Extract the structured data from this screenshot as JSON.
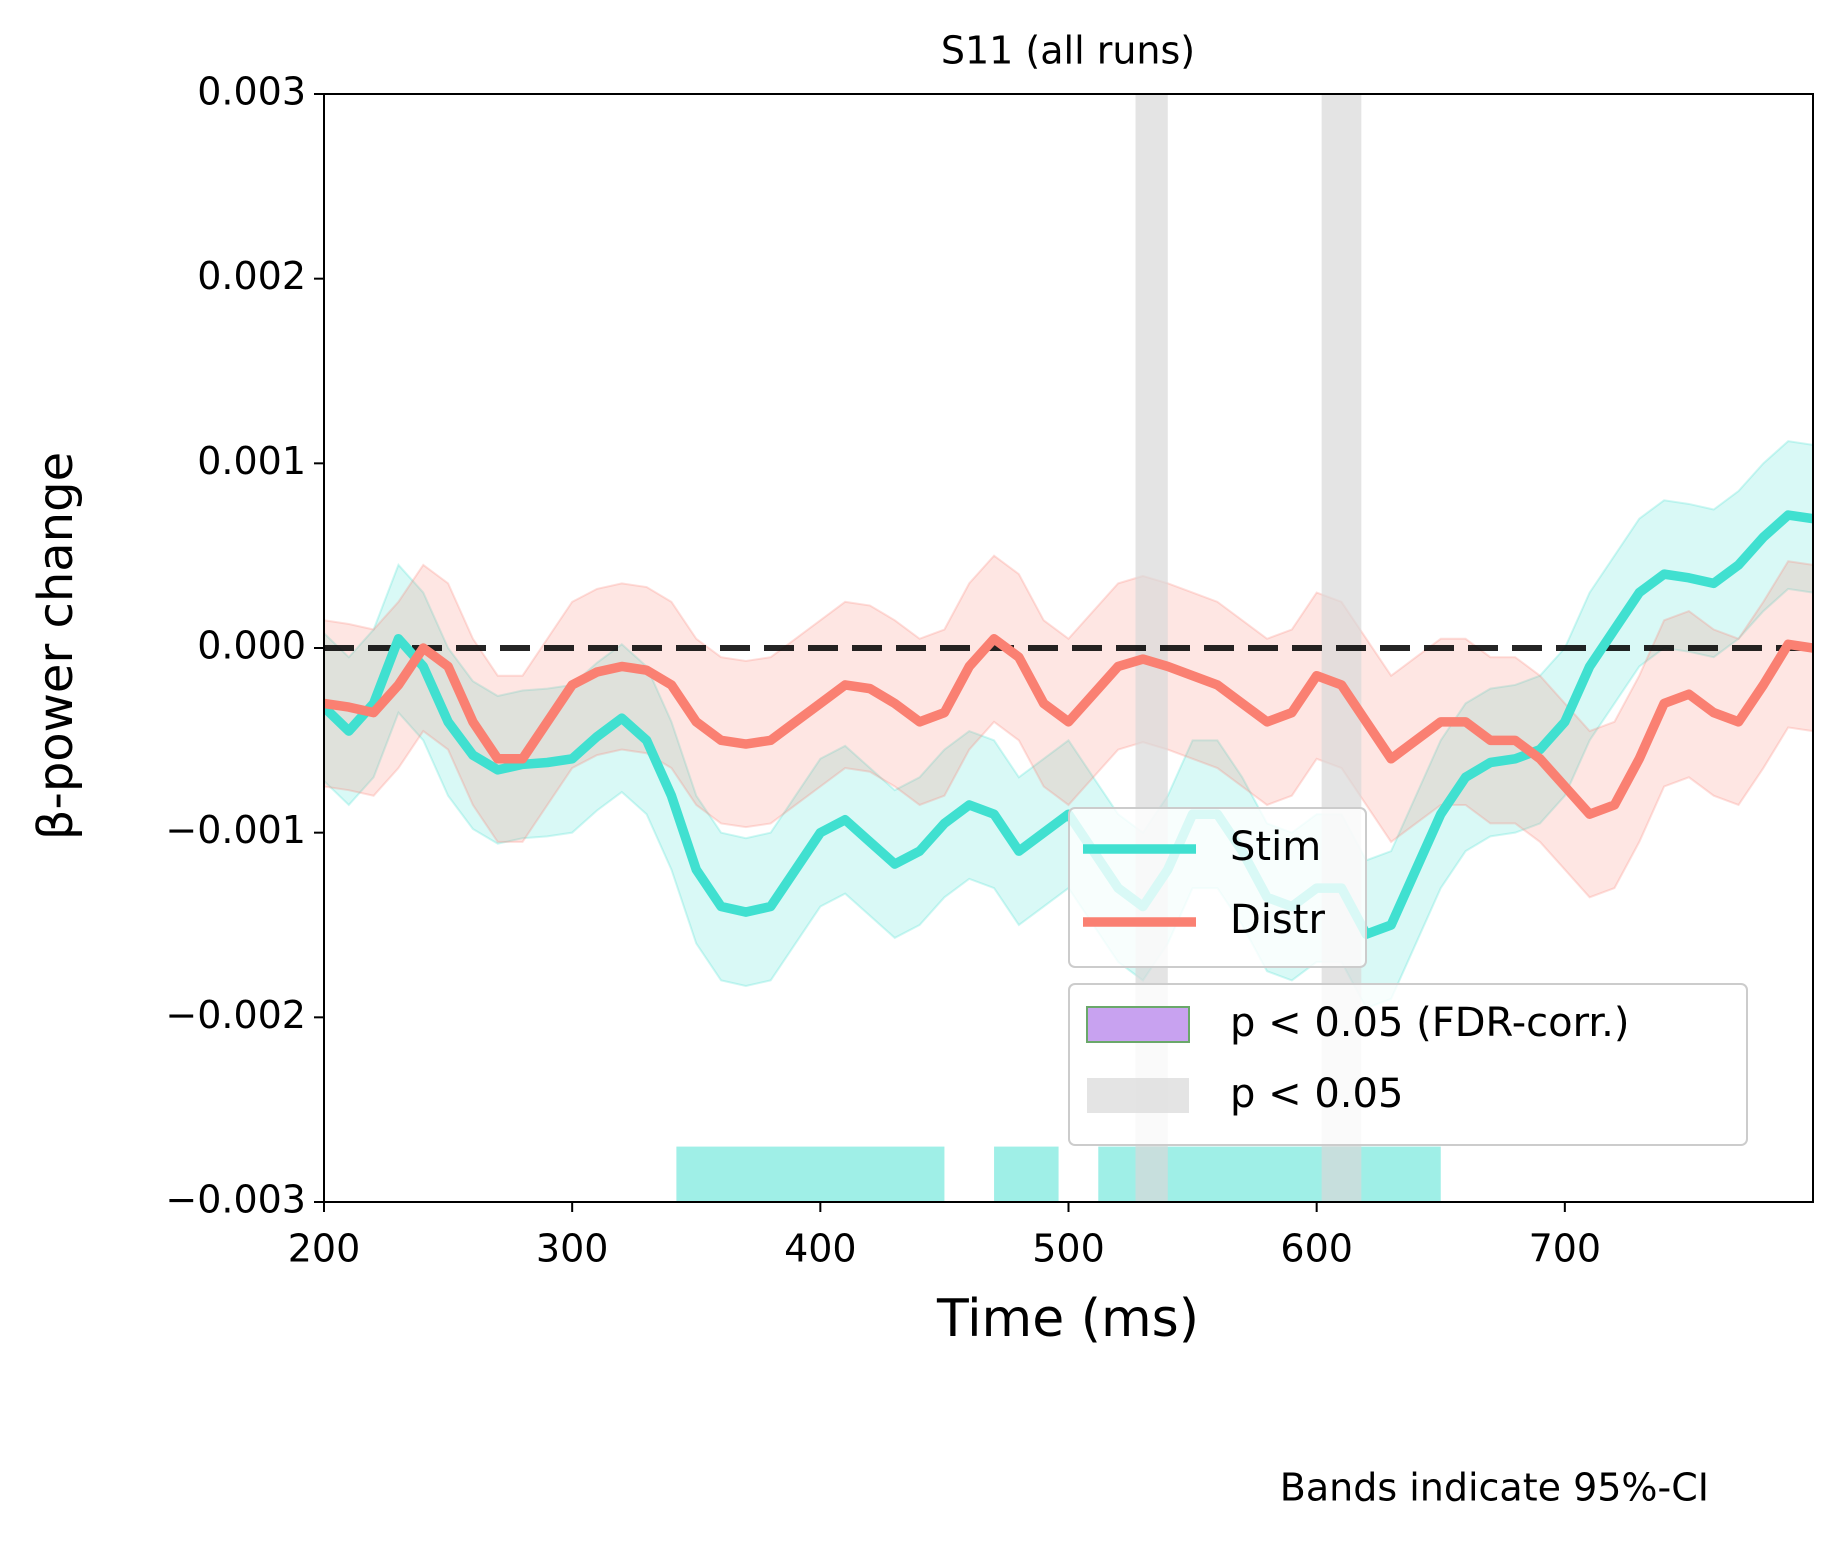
{
  "chart_data": {
    "type": "line",
    "title": "S11 (all runs)",
    "xlabel": "Time (ms)",
    "ylabel": "β-power change",
    "footnote": "Bands indicate 95%-CI",
    "xlim": [
      200,
      800
    ],
    "ylim": [
      -0.003,
      0.003
    ],
    "xticks": [
      200,
      300,
      400,
      500,
      600,
      700
    ],
    "yticks": [
      {
        "value": 0.003,
        "label": "0.003"
      },
      {
        "value": 0.002,
        "label": "0.002"
      },
      {
        "value": 0.001,
        "label": "0.001"
      },
      {
        "value": 0,
        "label": "0.000"
      },
      {
        "value": -0.001,
        "label": "−0.001"
      },
      {
        "value": -0.002,
        "label": "−0.002"
      },
      {
        "value": -0.003,
        "label": "−0.003"
      }
    ],
    "hline": 0,
    "x": [
      200,
      210,
      220,
      230,
      240,
      250,
      260,
      270,
      280,
      290,
      300,
      310,
      320,
      330,
      340,
      350,
      360,
      370,
      380,
      390,
      400,
      410,
      420,
      430,
      440,
      450,
      460,
      470,
      480,
      490,
      500,
      510,
      520,
      530,
      540,
      550,
      560,
      570,
      580,
      590,
      600,
      610,
      620,
      630,
      640,
      650,
      660,
      670,
      680,
      690,
      700,
      710,
      720,
      730,
      740,
      750,
      760,
      770,
      780,
      790,
      800
    ],
    "series": [
      {
        "name": "Stim",
        "color": "#40e0d0",
        "band_halfwidth": 0.0004,
        "values": [
          -0.00032,
          -0.00045,
          -0.0003,
          5e-05,
          -0.0001,
          -0.0004,
          -0.00058,
          -0.00066,
          -0.00063,
          -0.00062,
          -0.0006,
          -0.00048,
          -0.00038,
          -0.0005,
          -0.0008,
          -0.0012,
          -0.0014,
          -0.00143,
          -0.0014,
          -0.0012,
          -0.001,
          -0.00093,
          -0.00105,
          -0.00117,
          -0.0011,
          -0.00095,
          -0.00085,
          -0.0009,
          -0.0011,
          -0.001,
          -0.0009,
          -0.0011,
          -0.0013,
          -0.0014,
          -0.0012,
          -0.0009,
          -0.0009,
          -0.0011,
          -0.00135,
          -0.0014,
          -0.0013,
          -0.0013,
          -0.00155,
          -0.0015,
          -0.0012,
          -0.0009,
          -0.0007,
          -0.00062,
          -0.0006,
          -0.00055,
          -0.0004,
          -0.0001,
          0.0001,
          0.0003,
          0.0004,
          0.00038,
          0.00035,
          0.00045,
          0.0006,
          0.00072,
          0.0007
        ]
      },
      {
        "name": "Distr",
        "color": "#fa8072",
        "band_halfwidth": 0.00045,
        "values": [
          -0.0003,
          -0.00032,
          -0.00035,
          -0.0002,
          0,
          -0.0001,
          -0.0004,
          -0.0006,
          -0.0006,
          -0.0004,
          -0.0002,
          -0.00013,
          -0.0001,
          -0.00012,
          -0.0002,
          -0.0004,
          -0.0005,
          -0.00052,
          -0.0005,
          -0.0004,
          -0.0003,
          -0.0002,
          -0.00022,
          -0.0003,
          -0.0004,
          -0.00035,
          -0.0001,
          5e-05,
          -5e-05,
          -0.0003,
          -0.0004,
          -0.00025,
          -0.0001,
          -6e-05,
          -0.0001,
          -0.00015,
          -0.0002,
          -0.0003,
          -0.0004,
          -0.00035,
          -0.00015,
          -0.0002,
          -0.0004,
          -0.0006,
          -0.0005,
          -0.0004,
          -0.0004,
          -0.0005,
          -0.0005,
          -0.0006,
          -0.00075,
          -0.0009,
          -0.00085,
          -0.0006,
          -0.0003,
          -0.00025,
          -0.00035,
          -0.0004,
          -0.0002,
          2e-05,
          0
        ]
      }
    ],
    "shaded_regions": {
      "label": "p < 0.05",
      "color": "#d9d9d9",
      "spans": [
        [
          527,
          540
        ],
        [
          602,
          618
        ]
      ]
    },
    "fdr_legend": {
      "label": "p < 0.05 (FDR-corr.)",
      "color": "#c8a2f0",
      "edge": "#6aa86a"
    },
    "bottom_bars": {
      "color": "#40e0d0",
      "top": -0.0027,
      "spans": [
        [
          342,
          450
        ],
        [
          470,
          496
        ],
        [
          512,
          650
        ]
      ]
    }
  }
}
